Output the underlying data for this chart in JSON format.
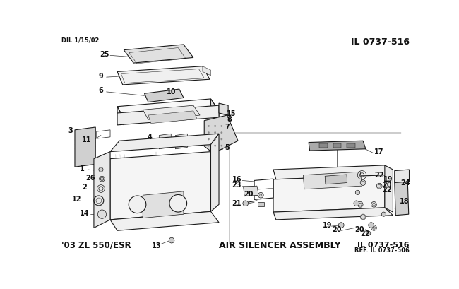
{
  "title_top_left": "DIL 1/15/02",
  "title_top_right": "IL 0737-516",
  "title_bottom_left": "'03 ZL 550/ESR",
  "title_bottom_center": "AIR SILENCER ASSEMBLY",
  "title_bottom_right_line1": "IL 0737-516",
  "title_bottom_right_line2": "REF. IL 0737-506",
  "bg_color": "#ffffff",
  "line_color": "#1a1a1a",
  "gray_light": "#c8c8c8",
  "gray_mid": "#999999",
  "gray_dark": "#555555"
}
